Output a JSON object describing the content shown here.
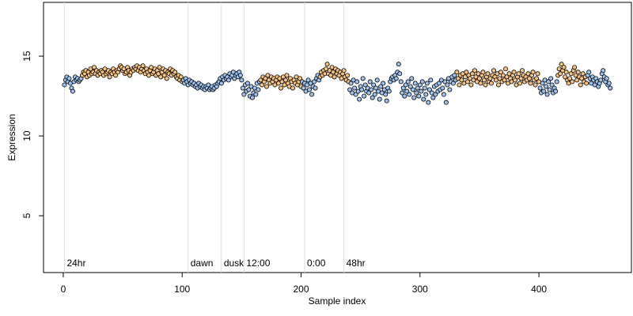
{
  "chart_data": {
    "type": "scatter",
    "xlabel": "Sample index",
    "ylabel": "Expression",
    "xlim": [
      -16.6,
      477.8
    ],
    "ylim": [
      1.44,
      18.37
    ],
    "xticks": [
      0,
      100,
      200,
      300,
      400
    ],
    "yticks": [
      5,
      10,
      15
    ],
    "annotations": [
      {
        "x": 1,
        "label": "24hr"
      },
      {
        "x": 105,
        "label": "dawn"
      },
      {
        "x": 133,
        "label": "dusk"
      },
      {
        "x": 152,
        "label": "12:00"
      },
      {
        "x": 203,
        "label": "0:00"
      },
      {
        "x": 236,
        "label": "48hr"
      }
    ],
    "annotation_color": "#dddddd",
    "series": [
      {
        "color": "#9ec3f0",
        "x": [
          1,
          2,
          3,
          4,
          5,
          6,
          7,
          8,
          9,
          10,
          11,
          12,
          13,
          14,
          15
        ],
        "values": [
          13.2,
          13.5,
          13.7,
          13.4,
          13.6,
          13.3,
          13.0,
          12.8,
          13.4,
          13.7,
          13.5,
          13.6,
          13.4,
          13.5,
          13.6
        ]
      },
      {
        "color": "#f5c282",
        "x": [
          16,
          17,
          18,
          19,
          20,
          21,
          22,
          23,
          24,
          25,
          26,
          27,
          28,
          29,
          30,
          31,
          32,
          33,
          34,
          35,
          36,
          37,
          38,
          39,
          40,
          41,
          42,
          43,
          44,
          45,
          46,
          47,
          48,
          49,
          50,
          51,
          52,
          53,
          54,
          55,
          56,
          57,
          58,
          59,
          60,
          61,
          62,
          63,
          64,
          65,
          66,
          67,
          68,
          69,
          70,
          71,
          72,
          73,
          74,
          75,
          76,
          77,
          78,
          79,
          80,
          81,
          82,
          83,
          84,
          85,
          86,
          87,
          88,
          89,
          90,
          91,
          92,
          93,
          94,
          95,
          96,
          97,
          98,
          99,
          100
        ],
        "values": [
          13.8,
          14.0,
          13.9,
          14.1,
          13.7,
          14.0,
          13.8,
          14.2,
          13.9,
          14.0,
          14.3,
          13.9,
          14.1,
          13.8,
          14.0,
          13.9,
          14.1,
          14.0,
          13.8,
          14.2,
          13.9,
          14.0,
          14.1,
          13.7,
          14.0,
          13.9,
          14.2,
          14.0,
          13.8,
          14.1,
          14.0,
          14.2,
          14.4,
          14.3,
          14.1,
          14.2,
          13.9,
          14.0,
          14.3,
          14.1,
          13.8,
          14.0,
          14.2,
          14.1,
          14.3,
          14.2,
          14.4,
          14.1,
          14.3,
          14.0,
          14.2,
          14.4,
          14.1,
          13.9,
          14.2,
          14.0,
          13.8,
          14.1,
          14.3,
          13.9,
          14.0,
          14.2,
          13.8,
          14.1,
          13.9,
          14.3,
          13.7,
          14.0,
          14.2,
          13.8,
          14.1,
          13.6,
          14.0,
          13.9,
          14.2,
          13.8,
          14.1,
          13.9,
          14.0,
          13.7,
          13.6,
          13.8,
          13.5,
          13.7,
          13.4
        ]
      },
      {
        "color": "#9ec3f0",
        "x": [
          101,
          102,
          103,
          104,
          105,
          106,
          107,
          108,
          109,
          110,
          111,
          112,
          113,
          114,
          115,
          116,
          117,
          118,
          119,
          120,
          121,
          122,
          123,
          124,
          125,
          126,
          127,
          128,
          129,
          130,
          131,
          132,
          133,
          134,
          135,
          136,
          137,
          138,
          139,
          140,
          141,
          142,
          143,
          144,
          145,
          146,
          147,
          148,
          149,
          150,
          151,
          152,
          153,
          154,
          155,
          156,
          157,
          158,
          159,
          160,
          161,
          162,
          163,
          164,
          165
        ],
        "values": [
          13.5,
          13.3,
          13.6,
          13.4,
          13.2,
          13.5,
          13.3,
          13.4,
          13.2,
          13.3,
          13.1,
          13.2,
          13.0,
          13.3,
          13.1,
          13.2,
          13.0,
          13.1,
          12.9,
          13.1,
          13.0,
          13.2,
          12.9,
          13.0,
          13.1,
          12.9,
          13.0,
          13.2,
          13.1,
          13.3,
          13.4,
          13.6,
          13.3,
          13.7,
          13.5,
          13.8,
          13.6,
          13.7,
          13.5,
          13.9,
          13.7,
          13.8,
          14.0,
          13.6,
          13.8,
          13.9,
          13.7,
          14.0,
          13.8,
          13.5,
          13.0,
          12.6,
          13.2,
          12.8,
          13.3,
          12.9,
          12.5,
          13.1,
          12.4,
          12.7,
          13.0,
          12.6,
          13.3,
          12.9,
          13.4
        ]
      },
      {
        "color": "#f5c282",
        "x": [
          166,
          167,
          168,
          169,
          170,
          171,
          172,
          173,
          174,
          175,
          176,
          177,
          178,
          179,
          180,
          181,
          182,
          183,
          184,
          185,
          186,
          187,
          188,
          189,
          190,
          191,
          192,
          193,
          194,
          195,
          196,
          197,
          198,
          199,
          200
        ],
        "values": [
          13.5,
          13.2,
          13.7,
          13.4,
          13.6,
          13.1,
          13.8,
          13.5,
          13.3,
          13.7,
          13.4,
          13.6,
          13.2,
          13.5,
          13.7,
          13.3,
          13.6,
          13.0,
          13.4,
          13.7,
          13.2,
          13.5,
          13.8,
          13.3,
          13.1,
          13.6,
          13.4,
          13.0,
          13.5,
          13.3,
          13.7,
          13.2,
          13.4,
          13.6,
          13.1
        ]
      },
      {
        "color": "#9ec3f0",
        "x": [
          201,
          202,
          203,
          204,
          205,
          206,
          207,
          208,
          209,
          210,
          211,
          212,
          213,
          214,
          215
        ],
        "values": [
          13.4,
          13.0,
          13.3,
          12.8,
          13.2,
          13.5,
          12.9,
          13.3,
          12.6,
          13.1,
          13.4,
          13.0,
          13.6,
          13.8,
          13.5
        ]
      },
      {
        "color": "#f5c282",
        "x": [
          216,
          217,
          218,
          219,
          220,
          221,
          222,
          223,
          224,
          225,
          226,
          227,
          228,
          229,
          230,
          231,
          232,
          233,
          234,
          235,
          236,
          237,
          238,
          239,
          240
        ],
        "values": [
          13.7,
          14.0,
          13.8,
          14.1,
          13.9,
          14.2,
          14.5,
          13.9,
          14.1,
          13.8,
          14.3,
          14.0,
          13.7,
          14.2,
          13.9,
          14.1,
          13.8,
          14.0,
          13.6,
          13.9,
          14.1,
          13.7,
          13.5,
          13.8,
          13.4
        ]
      },
      {
        "color": "#9ec3f0",
        "x": [
          241,
          242,
          243,
          244,
          245,
          246,
          247,
          248,
          249,
          250,
          251,
          252,
          253,
          254,
          255,
          256,
          257,
          258,
          259,
          260,
          261,
          262,
          263,
          264,
          265,
          266,
          267,
          268,
          269,
          270,
          271,
          272,
          273,
          274,
          275,
          276,
          277,
          278,
          279,
          280,
          281,
          282,
          283,
          284,
          285,
          286,
          287,
          288,
          289,
          290,
          291,
          292,
          293,
          294,
          295,
          296,
          297,
          298,
          299,
          300,
          301,
          302,
          303,
          304,
          305,
          306,
          307,
          308,
          309,
          310,
          311,
          312,
          313,
          314,
          315,
          316,
          317,
          318,
          319,
          320,
          321,
          322,
          323,
          324,
          325,
          326,
          327,
          328,
          329,
          330
        ],
        "values": [
          12.9,
          13.3,
          12.7,
          13.5,
          13.0,
          12.6,
          13.4,
          12.8,
          12.3,
          13.1,
          12.9,
          13.6,
          12.5,
          13.2,
          12.8,
          13.0,
          12.7,
          13.4,
          12.9,
          12.4,
          13.2,
          12.6,
          13.0,
          13.5,
          12.8,
          12.3,
          13.1,
          12.7,
          13.3,
          12.9,
          12.6,
          12.2,
          13.0,
          12.8,
          13.4,
          13.6,
          13.7,
          13.5,
          13.8,
          13.6,
          14.0,
          14.5,
          13.9,
          13.4,
          12.7,
          13.0,
          12.5,
          13.2,
          12.8,
          13.4,
          12.6,
          13.1,
          13.6,
          12.9,
          12.4,
          13.3,
          12.7,
          13.0,
          12.5,
          13.2,
          12.8,
          13.4,
          12.3,
          13.0,
          12.6,
          13.3,
          12.1,
          12.9,
          13.5,
          12.7,
          12.4,
          13.1,
          12.6,
          13.2,
          12.8,
          13.3,
          12.9,
          13.5,
          13.0,
          12.6,
          13.4,
          12.1,
          13.2,
          13.6,
          12.9,
          13.4,
          13.7,
          13.3,
          13.8,
          13.5
        ]
      },
      {
        "color": "#f5c282",
        "x": [
          331,
          332,
          333,
          334,
          335,
          336,
          337,
          338,
          339,
          340,
          341,
          342,
          343,
          344,
          345,
          346,
          347,
          348,
          349,
          350,
          351,
          352,
          353,
          354,
          355,
          356,
          357,
          358,
          359,
          360,
          361,
          362,
          363,
          364,
          365,
          366,
          367,
          368,
          369,
          370,
          371,
          372,
          373,
          374,
          375,
          376,
          377,
          378,
          379,
          380,
          381,
          382,
          383,
          384,
          385,
          386,
          387,
          388,
          389,
          390,
          391,
          392,
          393,
          394,
          395,
          396,
          397,
          398,
          399,
          400
        ],
        "values": [
          14.0,
          13.6,
          13.2,
          13.8,
          13.5,
          13.9,
          13.3,
          13.7,
          14.0,
          13.4,
          13.8,
          13.6,
          13.2,
          13.9,
          13.5,
          14.1,
          13.7,
          13.4,
          13.9,
          13.6,
          13.3,
          13.8,
          14.0,
          13.5,
          13.2,
          13.7,
          13.9,
          13.4,
          13.6,
          13.3,
          13.8,
          14.1,
          13.7,
          13.5,
          13.9,
          13.2,
          13.6,
          14.0,
          13.4,
          13.8,
          13.5,
          14.2,
          13.7,
          13.3,
          13.9,
          13.6,
          13.4,
          13.8,
          14.0,
          13.5,
          13.2,
          13.7,
          13.9,
          13.3,
          13.6,
          14.1,
          13.8,
          13.4,
          13.7,
          13.5,
          13.9,
          13.6,
          13.3,
          13.8,
          14.0,
          13.5,
          13.2,
          13.6,
          13.9,
          13.4
        ]
      },
      {
        "color": "#9ec3f0",
        "x": [
          401,
          402,
          403,
          404,
          405,
          406,
          407,
          408,
          409,
          410,
          411,
          412,
          413,
          414,
          415
        ],
        "values": [
          13.0,
          12.7,
          13.3,
          12.8,
          13.5,
          13.1,
          12.6,
          13.4,
          12.9,
          13.6,
          13.2,
          12.7,
          13.0,
          12.8,
          13.4
        ]
      },
      {
        "color": "#f5c282",
        "x": [
          416,
          417,
          418,
          419,
          420,
          421,
          422,
          423,
          424,
          425,
          426,
          427,
          428,
          429,
          430,
          431,
          432,
          433,
          434,
          435,
          436,
          437,
          438,
          439,
          440
        ],
        "values": [
          13.8,
          14.2,
          13.9,
          14.5,
          14.1,
          14.3,
          13.7,
          14.0,
          13.5,
          13.3,
          13.6,
          13.9,
          13.4,
          14.1,
          14.3,
          13.8,
          13.5,
          14.0,
          13.7,
          13.2,
          13.6,
          13.9,
          13.4,
          13.7,
          13.3
        ]
      },
      {
        "color": "#9ec3f0",
        "x": [
          441,
          442,
          443,
          444,
          445,
          446,
          447,
          448,
          449,
          450,
          451,
          452,
          453,
          454,
          455,
          456,
          457,
          458,
          459,
          460
        ],
        "values": [
          13.8,
          14.0,
          13.6,
          13.3,
          13.7,
          13.5,
          13.2,
          13.6,
          13.4,
          13.1,
          13.3,
          13.5,
          13.9,
          14.1,
          13.7,
          13.4,
          13.6,
          13.2,
          13.3,
          13.0
        ]
      }
    ]
  }
}
